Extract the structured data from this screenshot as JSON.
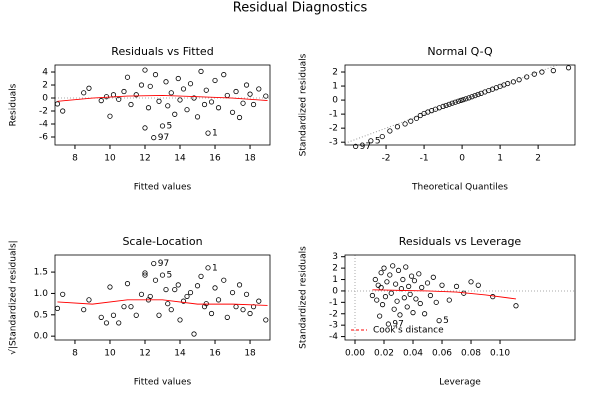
{
  "title": "Residual Diagnostics",
  "chart_data": [
    {
      "type": "scatter",
      "title": "Residuals vs Fitted",
      "xlabel": "Fitted values",
      "ylabel": "Residuals",
      "xlim": [
        6.86,
        19.14
      ],
      "ylim": [
        -7.23,
        5.08
      ],
      "xticks": [
        8,
        10,
        12,
        14,
        16,
        18
      ],
      "yticks": [
        -6,
        -4,
        -2,
        0,
        2,
        4
      ],
      "color": "#000000",
      "hline": 0,
      "x": [
        7.0,
        7.3,
        8.5,
        8.8,
        9.5,
        9.8,
        10.0,
        10.2,
        10.5,
        10.8,
        11.0,
        11.2,
        11.5,
        11.8,
        12.0,
        12.0,
        12.2,
        12.3,
        12.5,
        12.6,
        12.8,
        13.0,
        13.2,
        13.3,
        13.5,
        13.7,
        13.9,
        14.0,
        14.2,
        14.4,
        14.6,
        14.8,
        15.0,
        15.2,
        15.4,
        15.5,
        15.6,
        15.8,
        16.0,
        16.2,
        16.5,
        16.7,
        17.0,
        17.2,
        17.4,
        17.6,
        17.8,
        18.0,
        18.2,
        18.5,
        18.9
      ],
      "values": [
        -0.9,
        -2.0,
        0.8,
        1.5,
        -0.4,
        0.2,
        -2.8,
        0.5,
        -0.2,
        1.0,
        3.2,
        -1.0,
        0.5,
        2.0,
        4.3,
        -4.6,
        -1.5,
        1.8,
        -6.1,
        3.6,
        -0.5,
        -4.3,
        2.5,
        -1.2,
        0.8,
        -2.5,
        3.0,
        -0.3,
        1.4,
        -1.8,
        2.2,
        0.0,
        -2.9,
        4.1,
        -1.0,
        1.2,
        -5.4,
        -0.6,
        2.7,
        -1.5,
        3.6,
        0.4,
        -2.2,
        1.0,
        -3.0,
        -0.8,
        2.0,
        0.6,
        -1.0,
        1.4,
        0.3
      ],
      "smooth": {
        "color": "#ff0000",
        "x": [
          7,
          9,
          11,
          13,
          15,
          17,
          19
        ],
        "y": [
          -0.5,
          0.0,
          0.3,
          0.4,
          0.2,
          0.0,
          -0.4
        ]
      },
      "annotations": [
        {
          "text": "97",
          "x": 12.5,
          "y": -6.1
        },
        {
          "text": "5",
          "x": 13.0,
          "y": -4.3
        },
        {
          "text": "1",
          "x": 15.6,
          "y": -5.4
        }
      ]
    },
    {
      "type": "scatter",
      "title": "Normal Q-Q",
      "xlabel": "Theoretical Quantiles",
      "ylabel": "Standardized residuals",
      "xlim": [
        -3.08,
        2.97
      ],
      "ylim": [
        -3.2,
        2.5
      ],
      "xticks": [
        -2,
        -1,
        0,
        1,
        2
      ],
      "yticks": [
        -3,
        -2,
        -1,
        0,
        1,
        2
      ],
      "color": "#000000",
      "x": [
        -2.8,
        -2.4,
        -2.1,
        -1.9,
        -1.7,
        -1.5,
        -1.35,
        -1.2,
        -1.1,
        -1.0,
        -0.9,
        -0.8,
        -0.7,
        -0.6,
        -0.5,
        -0.42,
        -0.34,
        -0.26,
        -0.18,
        -0.1,
        -0.03,
        0.03,
        0.1,
        0.18,
        0.26,
        0.34,
        0.42,
        0.5,
        0.6,
        0.7,
        0.8,
        0.9,
        1.0,
        1.1,
        1.2,
        1.35,
        1.5,
        1.7,
        1.9,
        2.1,
        2.4,
        2.8
      ],
      "values": [
        -3.3,
        -2.9,
        -2.6,
        -2.2,
        -1.9,
        -1.7,
        -1.5,
        -1.3,
        -1.1,
        -0.95,
        -0.85,
        -0.75,
        -0.65,
        -0.55,
        -0.45,
        -0.38,
        -0.3,
        -0.22,
        -0.15,
        -0.08,
        -0.02,
        0.03,
        0.09,
        0.16,
        0.24,
        0.32,
        0.4,
        0.48,
        0.58,
        0.68,
        0.78,
        0.88,
        0.98,
        1.08,
        1.18,
        1.3,
        1.45,
        1.65,
        1.85,
        2.0,
        2.1,
        2.3
      ],
      "ref_line": {
        "color": "#999999",
        "x": [
          -3.08,
          2.97
        ],
        "y": [
          -3.08,
          2.97
        ]
      },
      "annotations": [
        {
          "text": "97",
          "x": -2.8,
          "y": -3.3
        },
        {
          "text": "5",
          "x": -2.4,
          "y": -2.9
        }
      ]
    },
    {
      "type": "scatter",
      "title": "Scale-Location",
      "xlabel": "Fitted values",
      "ylabel": "√|Standardized residuals|",
      "xlim": [
        6.86,
        19.14
      ],
      "ylim": [
        -0.09,
        1.9
      ],
      "xticks": [
        8,
        10,
        12,
        14,
        16,
        18
      ],
      "yticks": [
        {
          "value": 0,
          "label": "0.0"
        },
        {
          "value": 0.5,
          "label": "0.5"
        },
        {
          "value": 1,
          "label": "1.0"
        },
        {
          "value": 1.5,
          "label": "1.5"
        }
      ],
      "color": "#000000",
      "x": [
        7.0,
        7.3,
        8.5,
        8.8,
        9.5,
        9.8,
        10.0,
        10.2,
        10.5,
        10.8,
        11.0,
        11.2,
        11.5,
        11.8,
        12.0,
        12.0,
        12.2,
        12.3,
        12.5,
        12.6,
        12.8,
        13.0,
        13.2,
        13.3,
        13.5,
        13.7,
        13.9,
        14.0,
        14.2,
        14.4,
        14.6,
        14.8,
        15.0,
        15.2,
        15.4,
        15.5,
        15.6,
        15.8,
        16.0,
        16.2,
        16.5,
        16.7,
        17.0,
        17.2,
        17.4,
        17.6,
        17.8,
        18.0,
        18.2,
        18.5,
        18.9
      ],
      "values": [
        0.65,
        0.98,
        0.62,
        0.85,
        0.44,
        0.31,
        1.15,
        0.49,
        0.31,
        0.69,
        1.23,
        0.69,
        0.49,
        0.98,
        1.43,
        1.48,
        0.85,
        0.93,
        1.7,
        1.31,
        0.49,
        1.43,
        1.09,
        0.76,
        0.62,
        1.09,
        1.2,
        0.38,
        0.82,
        0.93,
        1.02,
        0.05,
        1.18,
        1.4,
        0.69,
        0.76,
        1.6,
        0.53,
        1.13,
        0.85,
        1.31,
        0.44,
        1.02,
        0.69,
        1.2,
        0.62,
        0.98,
        0.53,
        0.69,
        0.82,
        0.38
      ],
      "smooth": {
        "color": "#ff0000",
        "x": [
          7,
          9,
          11,
          13,
          15,
          17,
          19
        ],
        "y": [
          0.8,
          0.75,
          0.85,
          0.85,
          0.75,
          0.75,
          0.72
        ]
      },
      "annotations": [
        {
          "text": "97",
          "x": 12.5,
          "y": 1.7
        },
        {
          "text": "5",
          "x": 13.0,
          "y": 1.43
        },
        {
          "text": "1",
          "x": 15.6,
          "y": 1.6
        }
      ]
    },
    {
      "type": "scatter",
      "title": "Residuals vs Leverage",
      "xlabel": "Leverage",
      "ylabel": "Standardized residuals",
      "xlim": [
        -0.0069,
        0.1517
      ],
      "ylim": [
        -4.3,
        3.15
      ],
      "xticks": [
        {
          "value": 0,
          "label": "0.00"
        },
        {
          "value": 0.02,
          "label": "0.02"
        },
        {
          "value": 0.04,
          "label": "0.04"
        },
        {
          "value": 0.06,
          "label": "0.06"
        },
        {
          "value": 0.08,
          "label": "0.08"
        },
        {
          "value": 0.1,
          "label": "0.10"
        }
      ],
      "yticks": [
        -4,
        -3,
        -2,
        -1,
        0,
        1,
        2,
        3
      ],
      "color": "#000000",
      "hline": 0,
      "vline": 0,
      "x": [
        0.012,
        0.014,
        0.015,
        0.016,
        0.017,
        0.018,
        0.018,
        0.019,
        0.02,
        0.021,
        0.022,
        0.023,
        0.024,
        0.025,
        0.026,
        0.027,
        0.028,
        0.029,
        0.03,
        0.031,
        0.032,
        0.033,
        0.034,
        0.035,
        0.036,
        0.037,
        0.038,
        0.039,
        0.04,
        0.041,
        0.042,
        0.044,
        0.045,
        0.046,
        0.048,
        0.05,
        0.052,
        0.054,
        0.056,
        0.058,
        0.06,
        0.065,
        0.07,
        0.075,
        0.08,
        0.085,
        0.095,
        0.111
      ],
      "values": [
        -0.4,
        1.0,
        -0.8,
        0.5,
        -2.2,
        0.3,
        1.6,
        -1.2,
        2.0,
        -0.5,
        0.8,
        -2.9,
        1.4,
        -0.2,
        2.2,
        -1.6,
        0.6,
        -0.9,
        1.8,
        -2.1,
        0.2,
        1.0,
        -0.6,
        2.1,
        -1.4,
        0.4,
        -0.3,
        1.3,
        -1.9,
        0.9,
        -0.7,
        1.5,
        -1.1,
        0.3,
        -2.0,
        0.7,
        -0.4,
        1.2,
        -1.0,
        -2.6,
        0.5,
        -0.8,
        0.4,
        -0.2,
        0.8,
        0.5,
        -0.5,
        -1.3
      ],
      "smooth": {
        "color": "#ff0000",
        "x": [
          0.012,
          0.03,
          0.05,
          0.07,
          0.09,
          0.111
        ],
        "y": [
          0.1,
          0.05,
          0.0,
          -0.1,
          -0.35,
          -0.7
        ]
      },
      "legend": {
        "label": "Cook's distance",
        "color": "#ff0000",
        "position": "bottomleft"
      },
      "annotations": [
        {
          "text": "97",
          "x": 0.023,
          "y": -2.9
        },
        {
          "text": "5",
          "x": 0.058,
          "y": -2.6
        }
      ]
    }
  ]
}
